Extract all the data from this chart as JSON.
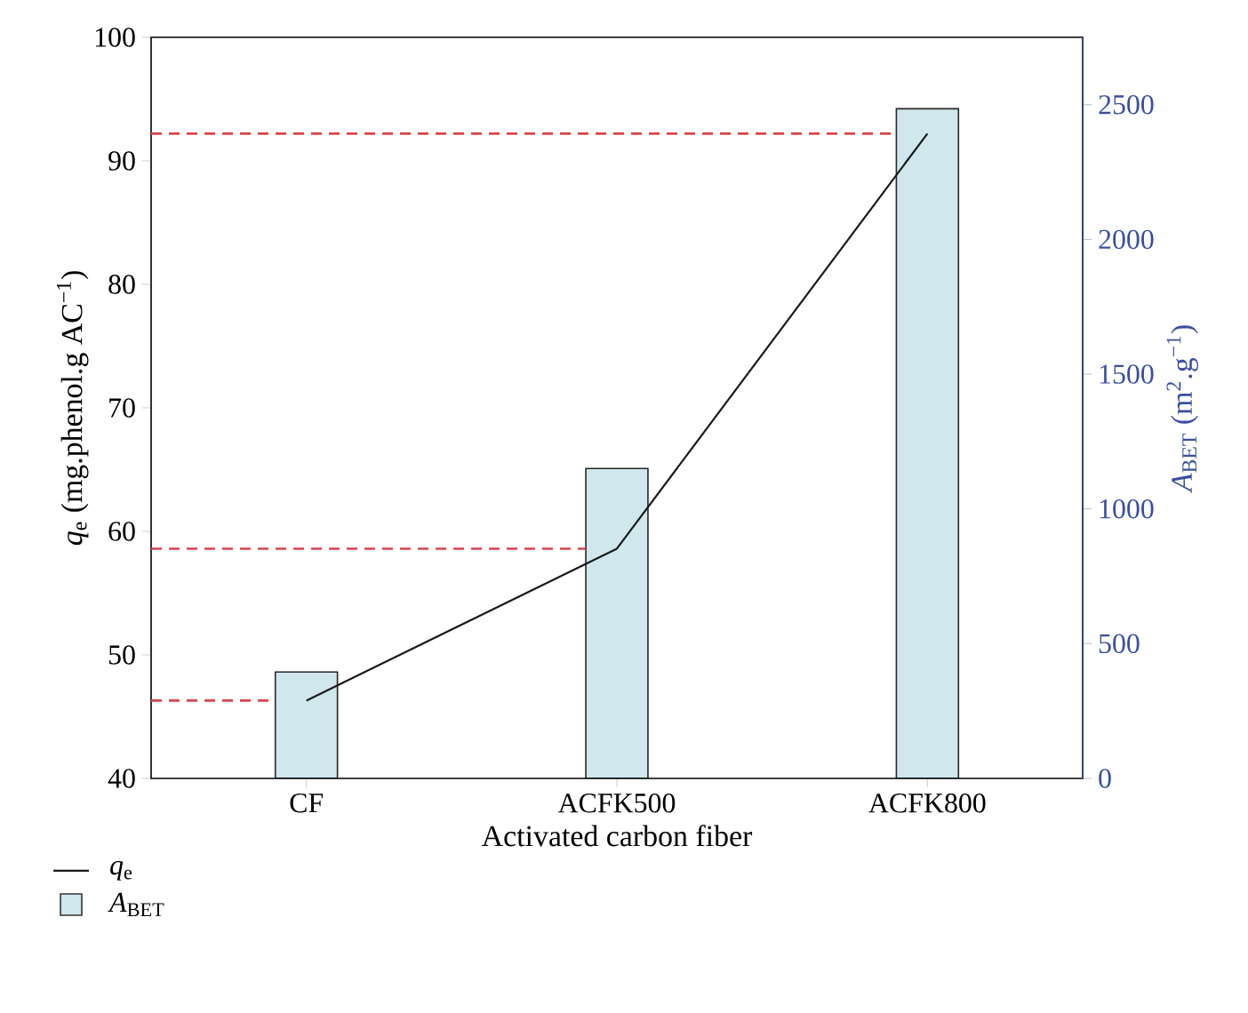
{
  "chart_data": {
    "type": "bar",
    "xlabel": "Activated carbon fiber",
    "ylabel": "*q*$_{e}$ (mg.phenol.g AC$^{−1}$)",
    "y2label": "*A*$_{BET}$ (m$^{2}$.g$^{−1}$)",
    "categories": [
      "CF",
      "ACFK500",
      "ACFK800"
    ],
    "series": [
      {
        "name": "*q*$_{e}$",
        "type": "line",
        "axis": "y",
        "color": "#1a1a1a",
        "values": [
          46.3,
          58.6,
          92.2
        ]
      },
      {
        "name": "*A*$_{BET}$",
        "type": "bar",
        "axis": "y2",
        "color": "#d0e8ed",
        "values": [
          395,
          1150,
          2485
        ]
      }
    ],
    "ylim": [
      40,
      100
    ],
    "yticks": [
      40,
      50,
      60,
      70,
      80,
      90,
      100
    ],
    "y2lim": [
      0,
      2750
    ],
    "y2ticks": [
      0,
      500,
      1000,
      1500,
      2000,
      2500
    ],
    "ref_lines": [
      {
        "axis": "y",
        "value": 46.3,
        "color": "#d9434b",
        "line_style": "dashed"
      },
      {
        "axis": "y",
        "value": 58.6,
        "color": "#d9434b",
        "line_style": "dashed"
      },
      {
        "axis": "y",
        "value": 92.2,
        "color": "#d9434b",
        "line_style": "dashed"
      }
    ],
    "legend": "bottom left"
  }
}
